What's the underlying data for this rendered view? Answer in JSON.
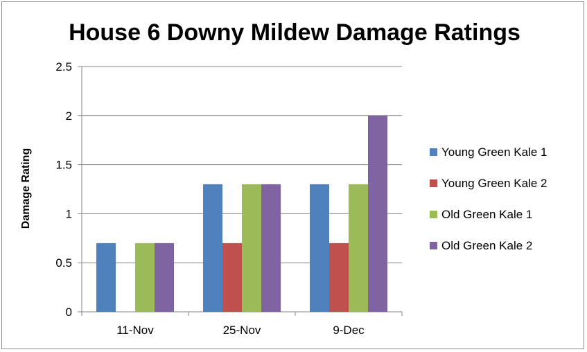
{
  "chart_data": {
    "type": "bar",
    "title": "House 6 Downy Mildew Damage Ratings",
    "xlabel": "",
    "ylabel": "Damage Rating",
    "categories": [
      "11-Nov",
      "25-Nov",
      "9-Dec"
    ],
    "ylim": [
      0,
      2.5
    ],
    "yticks": [
      0,
      0.5,
      1,
      1.5,
      2,
      2.5
    ],
    "ytick_labels": [
      "0",
      "0.5",
      "1",
      "1.5",
      "2",
      "2.5"
    ],
    "grid": true,
    "legend_position": "right",
    "series": [
      {
        "name": "Young Green Kale 1",
        "color": "#4f81bd",
        "values": [
          0.7,
          1.3,
          1.3
        ]
      },
      {
        "name": "Young Green Kale 2",
        "color": "#c0504d",
        "values": [
          0,
          0.7,
          0.7
        ]
      },
      {
        "name": "Old Green Kale 1",
        "color": "#9bbb59",
        "values": [
          0.7,
          1.3,
          1.3
        ]
      },
      {
        "name": "Old Green Kale 2",
        "color": "#8064a2",
        "values": [
          0.7,
          1.3,
          2.0
        ]
      }
    ]
  }
}
